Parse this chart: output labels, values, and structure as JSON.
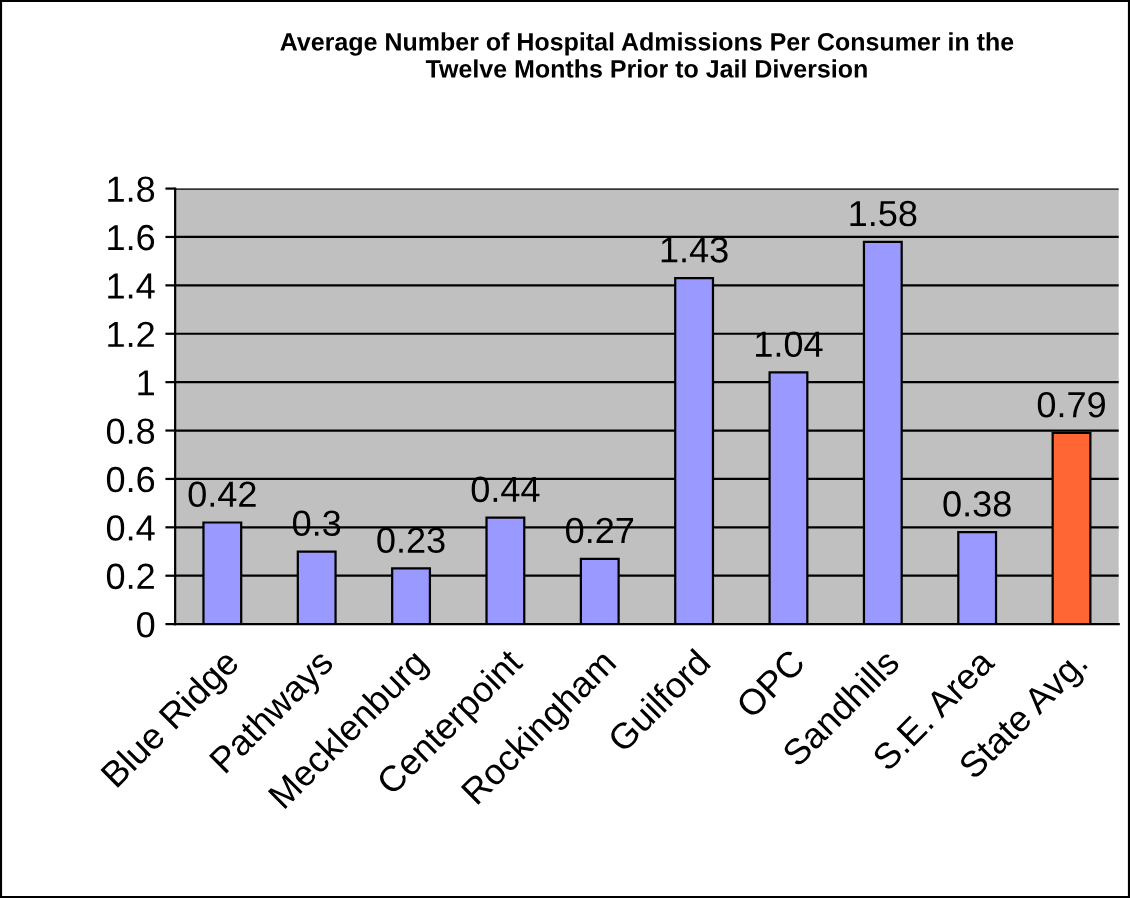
{
  "chart_data": {
    "type": "bar",
    "title": "Average Number of Hospital Admissions Per Consumer in the\nTwelve Months Prior to Jail Diversion",
    "categories": [
      "Blue Ridge",
      "Pathways",
      "Mecklenburg",
      "Centerpoint",
      "Rockingham",
      "Guilford",
      "OPC",
      "Sandhills",
      "S.E. Area",
      "State Avg."
    ],
    "values": [
      0.42,
      0.3,
      0.23,
      0.44,
      0.27,
      1.43,
      1.04,
      1.58,
      0.38,
      0.79
    ],
    "colors": [
      "#9999ff",
      "#9999ff",
      "#9999ff",
      "#9999ff",
      "#9999ff",
      "#9999ff",
      "#9999ff",
      "#9999ff",
      "#9999ff",
      "#ff6633"
    ],
    "ylim": [
      0,
      1.8
    ],
    "yticks": [
      0,
      0.2,
      0.4,
      0.6,
      0.8,
      1,
      1.2,
      1.4,
      1.6,
      1.8
    ],
    "grid": "y",
    "data_labels": true,
    "legend": false
  }
}
